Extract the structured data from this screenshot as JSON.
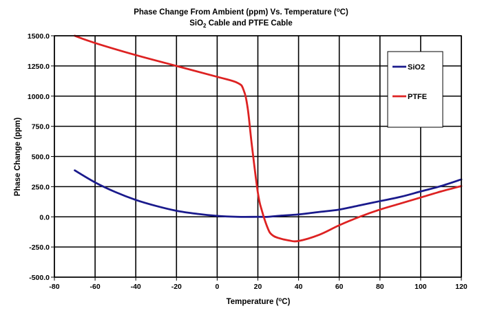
{
  "chart_data": {
    "type": "line",
    "title": "Phase Change From Ambient (ppm) Vs. Temperature (",
    "title_sup": "o",
    "title_end": "C)",
    "subtitle_a": "SiO",
    "subtitle_sub": "2",
    "subtitle_b": " Cable and PTFE Cable",
    "xlabel": "Temperature (",
    "xlabel_sup": "o",
    "xlabel_end": "C)",
    "ylabel": "Phase Change (ppm)",
    "xlim": [
      -80,
      120
    ],
    "ylim": [
      -500,
      1500
    ],
    "x_ticks": [
      -80,
      -60,
      -40,
      -20,
      0,
      20,
      40,
      60,
      80,
      100,
      120
    ],
    "y_ticks": [
      1500,
      1250,
      1000,
      750,
      500,
      250,
      0,
      -250,
      -500
    ],
    "y_tick_labels": [
      "1500.0",
      "1250.0",
      "1000.0",
      "750.0",
      "500.0",
      "250.0",
      "0.0",
      "-250.0",
      "-500.0"
    ],
    "x_tick_labels": [
      "-80",
      "-60",
      "-40",
      "-20",
      "0",
      "20",
      "40",
      "60",
      "80",
      "100",
      "120"
    ],
    "grid": true,
    "legend_position": "right",
    "series": [
      {
        "name": "SiO2",
        "color": "#1a1a8c",
        "x": [
          -70,
          -60,
          -50,
          -40,
          -30,
          -20,
          -10,
          0,
          10,
          20,
          25,
          30,
          40,
          50,
          60,
          70,
          80,
          90,
          100,
          110,
          120
        ],
        "y": [
          385,
          285,
          205,
          140,
          90,
          50,
          25,
          8,
          0,
          0,
          0,
          8,
          20,
          40,
          60,
          95,
          130,
          165,
          210,
          255,
          310
        ]
      },
      {
        "name": "PTFE",
        "color": "#dd2222",
        "x": [
          -70,
          -60,
          -40,
          -20,
          0,
          10,
          13,
          15,
          17,
          20,
          22,
          25,
          27,
          30,
          35,
          40,
          50,
          60,
          70,
          80,
          90,
          100,
          110,
          120
        ],
        "y": [
          1500,
          1440,
          1340,
          1250,
          1160,
          1110,
          1050,
          900,
          600,
          200,
          50,
          -100,
          -150,
          -175,
          -195,
          -200,
          -150,
          -70,
          0,
          60,
          110,
          160,
          210,
          255
        ]
      }
    ]
  }
}
